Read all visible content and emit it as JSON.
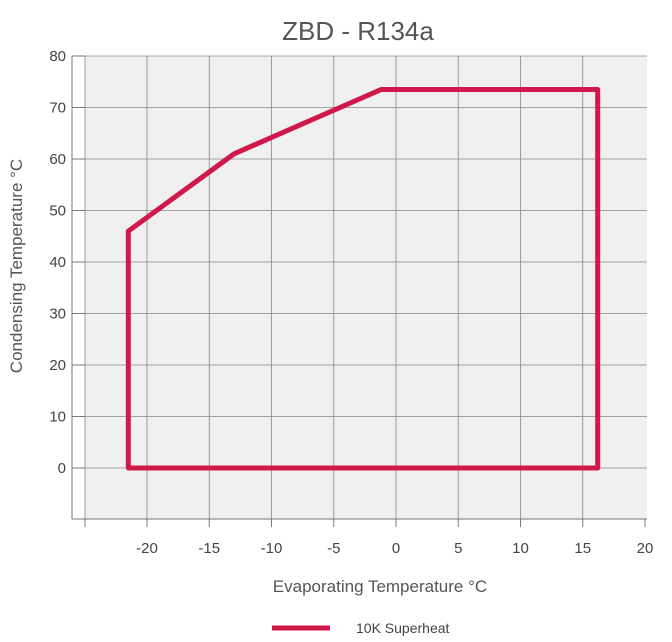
{
  "chart_data": {
    "type": "line",
    "title": "ZBD - R134a",
    "xlabel": "Evaporating Temperature °C",
    "ylabel": "Condensing Temperature °C",
    "xlim": [
      -25,
      20
    ],
    "ylim": [
      -10,
      80
    ],
    "xticks": [
      -20,
      -15,
      -10,
      -5,
      0,
      5,
      10,
      15,
      20
    ],
    "yticks": [
      0,
      10,
      20,
      30,
      40,
      50,
      60,
      70,
      80
    ],
    "grid": true,
    "legend_position": "bottom-center",
    "series": [
      {
        "name": "10K Superheat",
        "color": "#d0184a",
        "closed": true,
        "points": [
          [
            -21.5,
            0
          ],
          [
            -21.5,
            46
          ],
          [
            -13,
            61
          ],
          [
            -1.2,
            73.5
          ],
          [
            16.2,
            73.5
          ],
          [
            16.2,
            0
          ]
        ]
      }
    ]
  }
}
